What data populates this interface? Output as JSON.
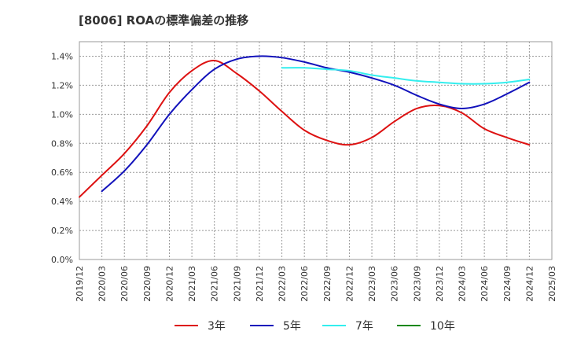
{
  "chart_data": {
    "type": "line",
    "title": "[8006]  ROAの標準偏差の推移",
    "xlabel": "",
    "ylabel": "",
    "x": [
      "2019/12",
      "2020/03",
      "2020/06",
      "2020/09",
      "2020/12",
      "2021/03",
      "2021/06",
      "2021/09",
      "2021/12",
      "2022/03",
      "2022/06",
      "2022/09",
      "2022/12",
      "2023/03",
      "2023/06",
      "2023/09",
      "2023/12",
      "2024/03",
      "2024/06",
      "2024/09",
      "2024/12",
      "2025/03"
    ],
    "ylim": [
      0,
      1.5
    ],
    "yticks": [
      0.0,
      0.2,
      0.4,
      0.6,
      0.8,
      1.0,
      1.2,
      1.4
    ],
    "ytick_labels": [
      "0.0%",
      "0.2%",
      "0.4%",
      "0.6%",
      "0.8%",
      "1.0%",
      "1.2%",
      "1.4%"
    ],
    "grid": true,
    "legend_position": "bottom",
    "series": [
      {
        "name": "3年",
        "color": "#dd1111",
        "values": [
          0.43,
          0.58,
          0.73,
          0.92,
          1.15,
          1.3,
          1.37,
          1.28,
          1.16,
          1.02,
          0.89,
          0.82,
          0.79,
          0.84,
          0.95,
          1.04,
          1.06,
          1.01,
          0.9,
          0.84,
          0.79,
          null
        ]
      },
      {
        "name": "5年",
        "color": "#1111bb",
        "values": [
          null,
          0.47,
          0.61,
          0.79,
          1.0,
          1.17,
          1.31,
          1.38,
          1.4,
          1.39,
          1.36,
          1.32,
          1.29,
          1.25,
          1.2,
          1.13,
          1.07,
          1.04,
          1.07,
          1.14,
          1.22,
          null
        ]
      },
      {
        "name": "7年",
        "color": "#33eeee",
        "values": [
          null,
          null,
          null,
          null,
          null,
          null,
          null,
          null,
          null,
          1.32,
          1.32,
          1.31,
          1.3,
          1.27,
          1.25,
          1.23,
          1.22,
          1.21,
          1.21,
          1.22,
          1.24,
          null
        ]
      },
      {
        "name": "10年",
        "color": "#118811",
        "values": [
          null,
          null,
          null,
          null,
          null,
          null,
          null,
          null,
          null,
          null,
          null,
          null,
          null,
          null,
          null,
          null,
          null,
          null,
          null,
          null,
          null,
          null
        ]
      }
    ]
  }
}
